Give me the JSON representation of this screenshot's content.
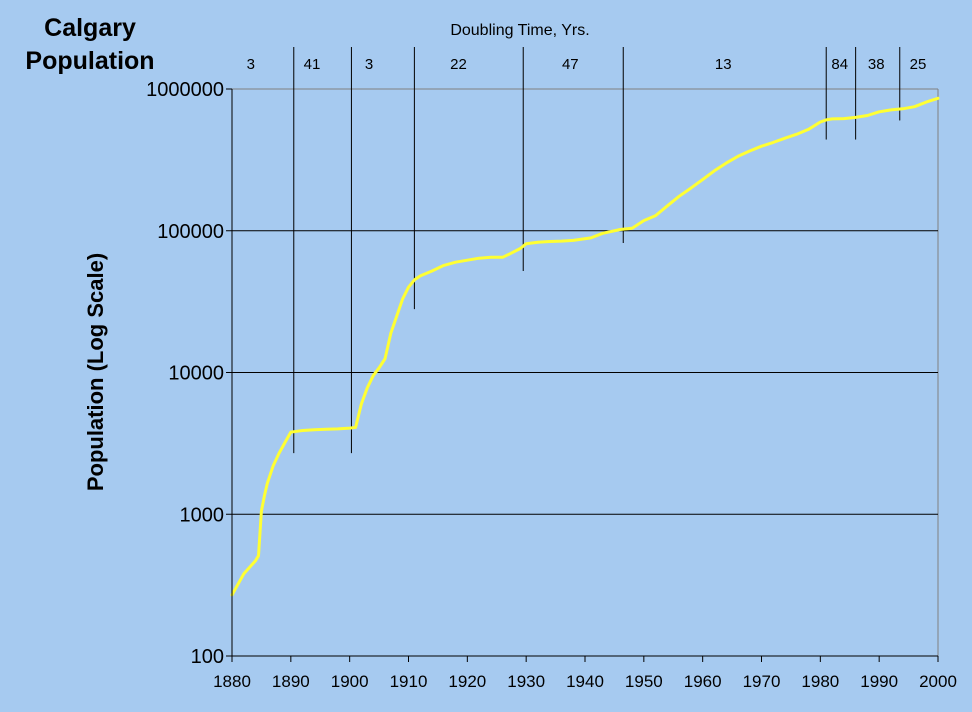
{
  "chart_data": {
    "type": "line",
    "title": "Calgary\nPopulation",
    "xlabel": "",
    "ylabel": "Population (Log Scale)",
    "y_scale": "log",
    "ylim": [
      100,
      1000000
    ],
    "xlim": [
      1880,
      2000
    ],
    "grid": "horizontal",
    "line_color": "#ffff33",
    "x_ticks": [
      1880,
      1890,
      1900,
      1910,
      1920,
      1930,
      1940,
      1950,
      1960,
      1970,
      1980,
      1990,
      2000
    ],
    "y_ticks": [
      100,
      1000,
      10000,
      100000,
      1000000
    ],
    "y_tick_labels": [
      "100",
      "1000",
      "10000",
      "100000",
      "1000000"
    ],
    "series": [
      {
        "x": [
          1880,
          1881,
          1882,
          1884,
          1884.5,
          1885,
          1885.5,
          1886,
          1887,
          1888,
          1889,
          1890,
          1891,
          1892,
          1894,
          1896,
          1898,
          1900,
          1901,
          1902,
          1903,
          1904,
          1905,
          1906,
          1907,
          1908,
          1909,
          1910,
          1911,
          1912,
          1914,
          1916,
          1918,
          1920,
          1922,
          1924,
          1926,
          1927,
          1929,
          1930,
          1932,
          1934,
          1936,
          1938,
          1941,
          1943,
          1946,
          1948,
          1950,
          1952,
          1954,
          1956,
          1958,
          1960,
          1962,
          1964,
          1966,
          1968,
          1970,
          1972,
          1974,
          1976,
          1978,
          1980,
          1981,
          1982,
          1984,
          1986,
          1988,
          1990,
          1992,
          1994,
          1996,
          1998,
          2000
        ],
        "y": [
          270,
          320,
          380,
          470,
          510,
          1050,
          1350,
          1650,
          2200,
          2700,
          3200,
          3800,
          3850,
          3900,
          3950,
          3980,
          4000,
          4050,
          4100,
          6000,
          7800,
          9500,
          10800,
          12500,
          19000,
          25000,
          33000,
          40000,
          45000,
          48000,
          52000,
          57000,
          60000,
          62000,
          64000,
          65000,
          65000,
          68000,
          75000,
          81000,
          83000,
          84000,
          84500,
          85500,
          89000,
          96000,
          102000,
          104000,
          118000,
          128000,
          150000,
          175000,
          200000,
          230000,
          265000,
          300000,
          335000,
          365000,
          395000,
          420000,
          450000,
          480000,
          520000,
          585000,
          605000,
          615000,
          618000,
          630000,
          650000,
          690000,
          712000,
          725000,
          750000,
          808000,
          860000
        ]
      }
    ],
    "doubling_header": "Doubling Time, Yrs.",
    "doubling_dividers": [
      {
        "x": 1890.5,
        "y_bottom": 2700
      },
      {
        "x": 1900.3,
        "y_bottom": 2700
      },
      {
        "x": 1911,
        "y_bottom": 28000
      },
      {
        "x": 1929.5,
        "y_bottom": 52000
      },
      {
        "x": 1946.5,
        "y_bottom": 82000
      },
      {
        "x": 1981,
        "y_bottom": 440000
      },
      {
        "x": 1986,
        "y_bottom": 440000
      },
      {
        "x": 1993.5,
        "y_bottom": 600000
      }
    ],
    "doubling_periods": [
      {
        "label": "3",
        "x": 1883.2
      },
      {
        "label": "41",
        "x": 1893.6
      },
      {
        "label": "3",
        "x": 1903.3
      },
      {
        "label": "22",
        "x": 1918.5
      },
      {
        "label": "47",
        "x": 1937.5
      },
      {
        "label": "13",
        "x": 1963.5
      },
      {
        "label": "84",
        "x": 1983.3
      },
      {
        "label": "38",
        "x": 1989.5
      },
      {
        "label": "25",
        "x": 1996.6
      }
    ]
  }
}
